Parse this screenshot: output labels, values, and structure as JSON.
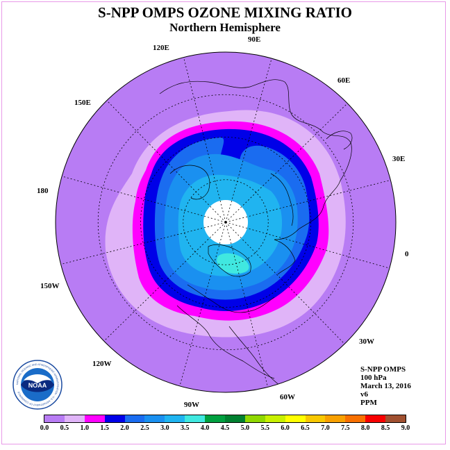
{
  "title": "S-NPP OMPS OZONE MIXING RATIO",
  "subtitle": "Northern Hemisphere",
  "longitude_labels": {
    "e90": "90E",
    "e120": "120E",
    "e60": "60E",
    "e150": "150E",
    "e30": "30E",
    "e180": "180",
    "e0": "0",
    "w150": "150W",
    "w30": "30W",
    "w120": "120W",
    "w60": "60W",
    "w90": "90W"
  },
  "info": {
    "instrument": "S-NPP OMPS",
    "level": "100 hPa",
    "date": "March 13, 2016",
    "version": "v6",
    "units": "PPM"
  },
  "logo": {
    "text": "NOAA",
    "ring_text": "NATIONAL OCEANIC AND ATMOSPHERIC ADMINISTRATION · U.S. DEPARTMENT OF COMMERCE"
  },
  "colorbar": {
    "ticks": [
      "0.0",
      "0.5",
      "1.0",
      "1.5",
      "2.0",
      "2.5",
      "3.0",
      "3.5",
      "4.0",
      "4.5",
      "5.0",
      "5.5",
      "6.0",
      "6.5",
      "7.0",
      "7.5",
      "8.0",
      "8.5",
      "9.0"
    ],
    "colors": [
      "#b87cf4",
      "#e0b4f8",
      "#ff00ff",
      "#0000e8",
      "#1a6cf0",
      "#1a90f0",
      "#20b4f0",
      "#40e8e0",
      "#00a040",
      "#008030",
      "#90d800",
      "#c8f000",
      "#ffff00",
      "#f8c800",
      "#f8a000",
      "#f87000",
      "#f80000",
      "#a05030"
    ]
  },
  "map_colors": {
    "background": "#b87cf4",
    "band_0_5": "#e0b4f8",
    "band_1_0": "#ff00ff",
    "band_1_5": "#0000e8",
    "band_2_0": "#1a6cf0",
    "band_2_5": "#1a90f0",
    "band_3_0": "#20b4f0",
    "band_3_5": "#40e8e0",
    "pole": "#ffffff"
  }
}
